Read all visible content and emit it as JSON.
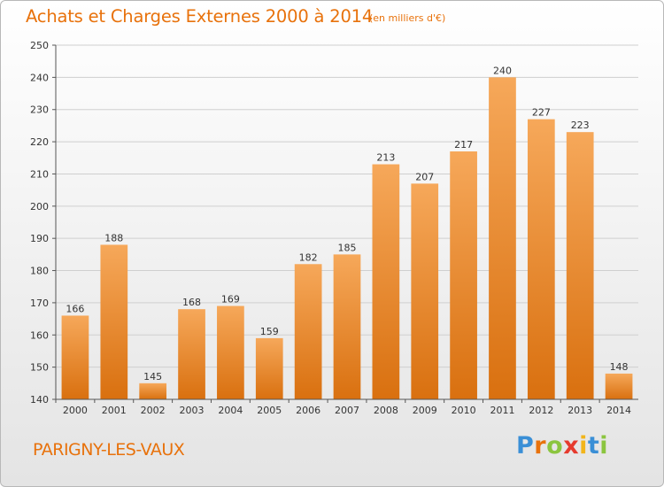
{
  "header": {
    "title": "Achats et Charges Externes 2000 à 2014",
    "unit": "(en milliers d'€)"
  },
  "footer": {
    "commune": "PARIGNY-LES-VAUX",
    "logo_letters": [
      "P",
      "r",
      "o",
      "x",
      "i",
      "t",
      "i"
    ],
    "logo_colors": [
      "#3a8fd6",
      "#e8720c",
      "#8bc53f",
      "#e63b2e",
      "#f2b51b",
      "#3a8fd6",
      "#8bc53f"
    ]
  },
  "colors": {
    "bar_top": "#f6a85a",
    "bar_bottom": "#d9700f",
    "grid": "#cfcfcf",
    "accent": "#e8720c"
  },
  "chart_data": {
    "type": "bar",
    "title": "Achats et Charges Externes 2000 à 2014",
    "subtitle": "(en milliers d'€)",
    "xlabel": "",
    "ylabel": "",
    "categories": [
      "2000",
      "2001",
      "2002",
      "2003",
      "2004",
      "2005",
      "2006",
      "2007",
      "2008",
      "2009",
      "2010",
      "2011",
      "2012",
      "2013",
      "2014"
    ],
    "values": [
      166,
      188,
      145,
      168,
      169,
      159,
      182,
      185,
      213,
      207,
      217,
      240,
      227,
      223,
      148
    ],
    "ylim": [
      140,
      250
    ],
    "yticks": [
      140,
      150,
      160,
      170,
      180,
      190,
      200,
      210,
      220,
      230,
      240,
      250
    ],
    "grid": true,
    "data_labels": true
  }
}
